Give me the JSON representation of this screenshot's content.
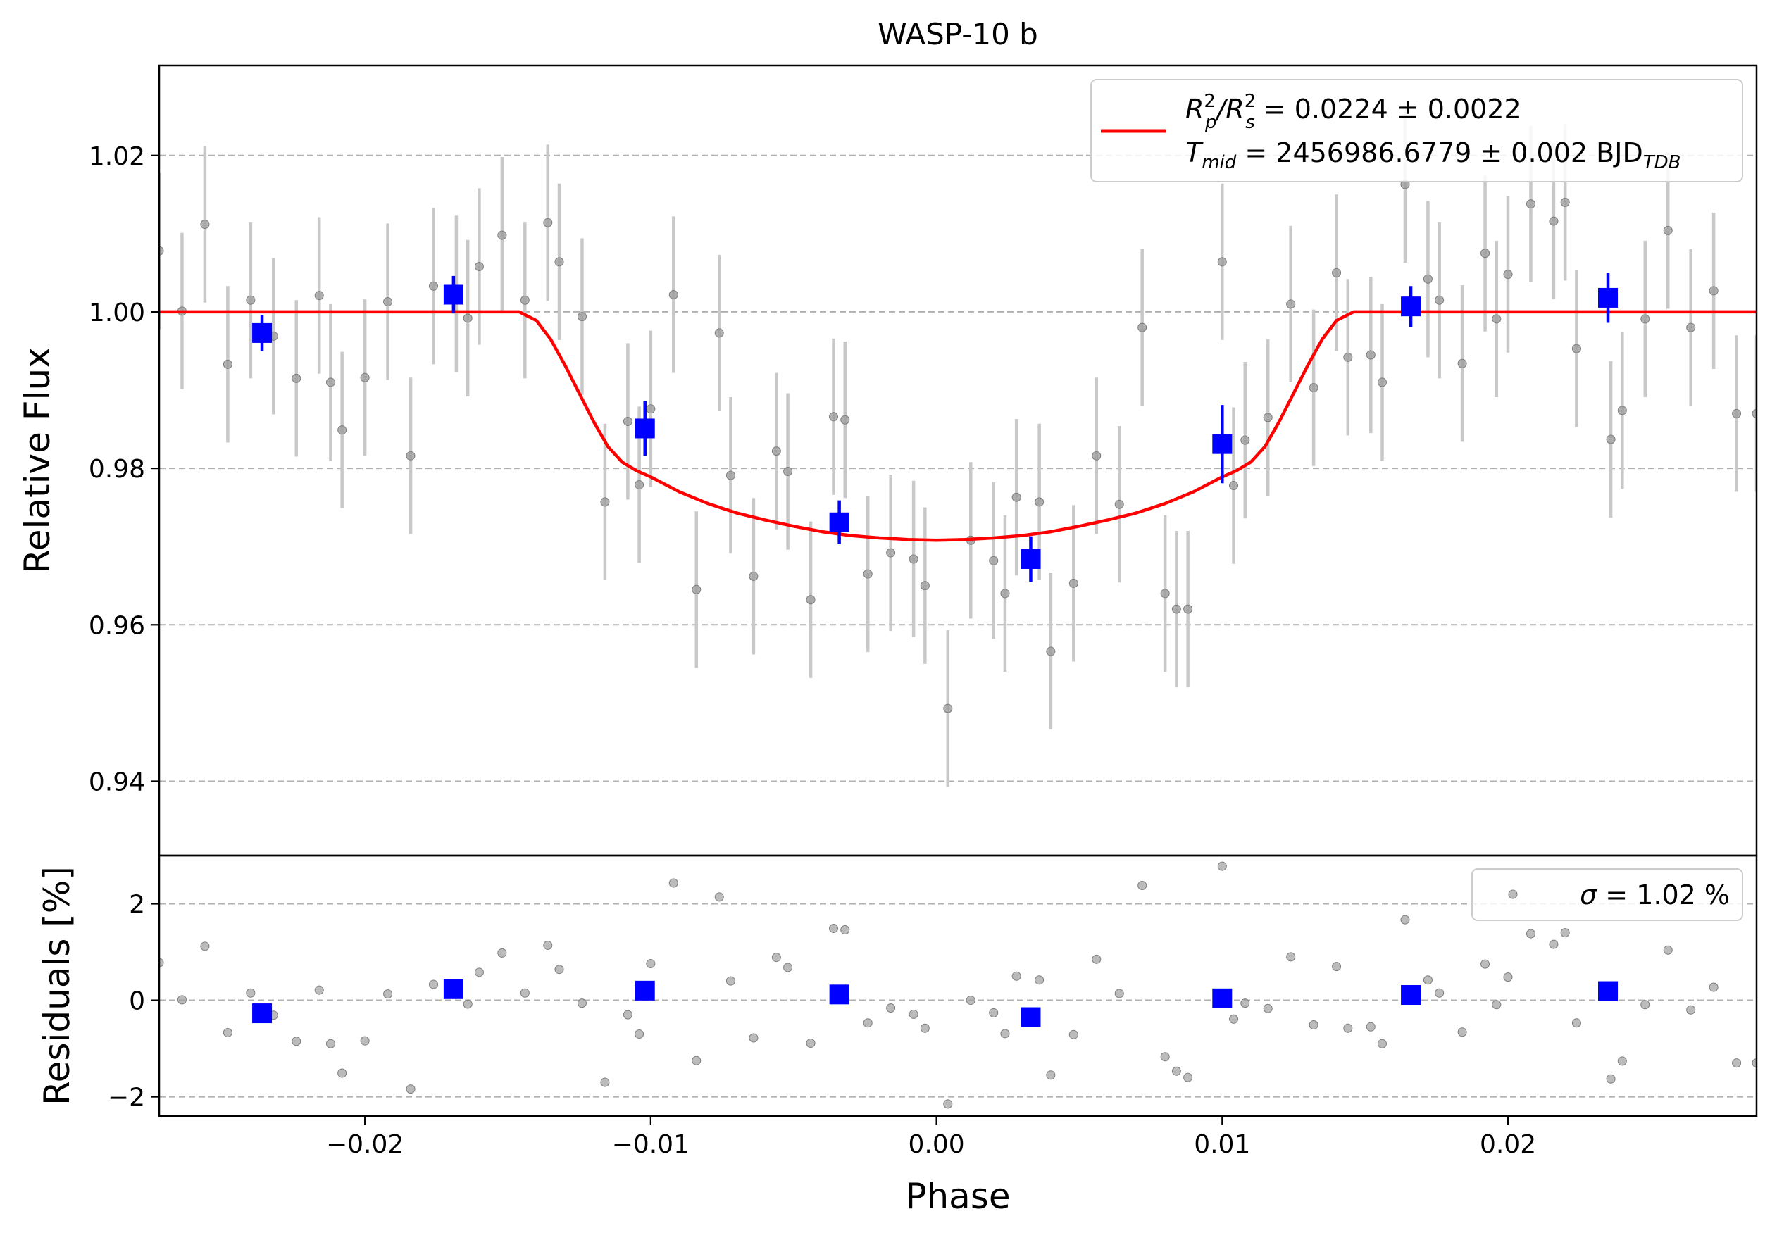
{
  "chart_data": [
    {
      "type": "scatter",
      "panel": "main",
      "title": "WASP-10 b",
      "xlabel": "",
      "ylabel": "Relative Flux",
      "xlim": [
        -0.0272,
        0.0287
      ],
      "ylim": [
        0.9305,
        1.0315
      ],
      "grid": "horizontal-dashed",
      "legend_position": "top-right",
      "y_ticks": [
        0.94,
        0.96,
        0.98,
        1.0,
        1.02
      ],
      "y_tick_labels": [
        "0.94",
        "0.96",
        "0.98",
        "1.00",
        "1.02"
      ],
      "legend": {
        "line1": "Rₚ²/Rₛ² = 0.0224 ± 0.0022",
        "line2": "T_mid = 2456986.6779 ± 0.002 BJD_TDB",
        "line1_parts": {
          "lhs_a": "R",
          "lhs_a_sup": "2",
          "lhs_a_sub": "p",
          "slash": "/",
          "lhs_b": "R",
          "lhs_b_sup": "2",
          "lhs_b_sub": "s",
          "rhs": " = 0.0224 ± 0.0022"
        },
        "line2_parts": {
          "lhs": "T",
          "lhs_sub": "mid",
          "rhs": " = 2456986.6779 ± 0.002 BJD",
          "rhs_sub": "TDB"
        }
      },
      "series": [
        {
          "name": "data",
          "color": "#9e9e9e",
          "x": [
            -0.0272,
            -0.0264,
            -0.0256,
            -0.0248,
            -0.024,
            -0.0232,
            -0.0224,
            -0.0216,
            -0.0212,
            -0.0208,
            -0.02,
            -0.0192,
            -0.0184,
            -0.0176,
            -0.0168,
            -0.0164,
            -0.016,
            -0.0152,
            -0.0144,
            -0.0136,
            -0.0132,
            -0.0124,
            -0.0116,
            -0.0108,
            -0.0104,
            -0.01,
            -0.0092,
            -0.0084,
            -0.0076,
            -0.0072,
            -0.0064,
            -0.0056,
            -0.0052,
            -0.0044,
            -0.0036,
            -0.0032,
            -0.0024,
            -0.0016,
            -0.0008,
            -0.0004,
            0.0004,
            0.0012,
            0.002,
            0.0024,
            0.0028,
            0.0036,
            0.004,
            0.0048,
            0.0056,
            0.0064,
            0.0072,
            0.008,
            0.0084,
            0.0088,
            0.01,
            0.0104,
            0.0108,
            0.0116,
            0.0124,
            0.0132,
            0.014,
            0.0144,
            0.0152,
            0.0156,
            0.0164,
            0.0172,
            0.0176,
            0.0184,
            0.0192,
            0.0196,
            0.02,
            0.0208,
            0.0216,
            0.022,
            0.0224,
            0.0236,
            0.024,
            0.0248,
            0.0256,
            0.0264,
            0.0272,
            0.028,
            0.0287
          ],
          "y": [
            1.0078,
            1.0001,
            1.0112,
            0.9933,
            1.0015,
            0.9969,
            0.9915,
            1.0021,
            0.991,
            0.9849,
            0.9916,
            1.0013,
            0.9816,
            1.0033,
            1.0023,
            0.9992,
            1.0058,
            1.0098,
            1.0015,
            1.0114,
            1.0064,
            0.9994,
            0.9757,
            0.986,
            0.9779,
            0.9876,
            1.0022,
            0.9645,
            0.9973,
            0.9791,
            0.9662,
            0.9822,
            0.9796,
            0.9632,
            0.9866,
            0.9862,
            0.9665,
            0.9692,
            0.9684,
            0.965,
            0.9493,
            0.9708,
            0.9682,
            0.964,
            0.9763,
            0.9757,
            0.9566,
            0.9653,
            0.9816,
            0.9754,
            0.998,
            0.964,
            0.962,
            0.962,
            1.0064,
            0.9778,
            0.9836,
            0.9865,
            1.001,
            0.9903,
            1.005,
            0.9942,
            0.9945,
            0.991,
            1.0163,
            1.0042,
            1.0015,
            0.9934,
            1.0075,
            0.9991,
            1.0048,
            1.0138,
            1.0116,
            1.014,
            0.9953,
            0.9837,
            0.9874,
            0.9991,
            1.0104,
            0.998,
            1.0027,
            0.987,
            0.987
          ],
          "residuals": [
            0.78,
            0.01,
            1.12,
            -0.67,
            0.15,
            -0.31,
            -0.85,
            0.21,
            -0.9,
            -1.51,
            -0.84,
            0.13,
            -1.84,
            0.33,
            0.23,
            -0.08,
            0.58,
            0.98,
            0.15,
            1.14,
            0.64,
            -0.06,
            -1.7,
            -0.3,
            -0.7,
            0.76,
            2.43,
            -1.25,
            2.14,
            0.4,
            -0.78,
            0.89,
            0.68,
            -0.89,
            1.49,
            1.46,
            -0.47,
            -0.16,
            -0.29,
            -0.58,
            -2.15,
            0.0,
            -0.26,
            -0.69,
            0.5,
            0.42,
            -1.55,
            -0.71,
            0.85,
            0.14,
            2.38,
            -1.17,
            -1.47,
            -1.6,
            2.78,
            -0.39,
            -0.06,
            -0.17,
            0.9,
            -0.51,
            0.7,
            -0.58,
            -0.55,
            -0.9,
            1.67,
            0.42,
            0.15,
            -0.66,
            0.75,
            -0.09,
            0.48,
            1.38,
            1.16,
            1.4,
            -0.47,
            -1.63,
            -1.26,
            -0.09,
            1.04,
            -0.2,
            0.27,
            -1.3,
            -1.3
          ],
          "err": 0.01
        },
        {
          "name": "binned",
          "color": "#0000ff",
          "x": [
            -0.0236,
            -0.0169,
            -0.0102,
            -0.0034,
            0.0033,
            0.01,
            0.0166,
            0.0235
          ],
          "y": [
            0.9973,
            1.0022,
            0.9851,
            0.9731,
            0.9684,
            0.9831,
            1.0007,
            1.0018
          ],
          "err": [
            0.0023,
            0.0024,
            0.0035,
            0.0028,
            0.0029,
            0.005,
            0.0026,
            0.0032
          ],
          "residuals": [
            -0.27,
            0.23,
            0.2,
            0.12,
            -0.35,
            0.04,
            0.11,
            0.19
          ]
        },
        {
          "name": "model",
          "color": "#ff0000",
          "x": [
            -0.0272,
            -0.0146,
            -0.014,
            -0.0135,
            -0.013,
            -0.0125,
            -0.012,
            -0.0115,
            -0.011,
            -0.0105,
            -0.01,
            -0.009,
            -0.008,
            -0.007,
            -0.006,
            -0.005,
            -0.004,
            -0.003,
            -0.002,
            -0.001,
            0.0,
            0.001,
            0.002,
            0.003,
            0.004,
            0.005,
            0.006,
            0.007,
            0.008,
            0.009,
            0.01,
            0.0105,
            0.011,
            0.0115,
            0.012,
            0.0125,
            0.013,
            0.0135,
            0.014,
            0.0146,
            0.0287
          ],
          "y": [
            1.0,
            1.0,
            0.9989,
            0.9965,
            0.9932,
            0.9896,
            0.986,
            0.9828,
            0.9808,
            0.9797,
            0.9789,
            0.977,
            0.9755,
            0.9743,
            0.9734,
            0.9726,
            0.9719,
            0.9714,
            0.9711,
            0.9709,
            0.9708,
            0.9709,
            0.9711,
            0.9714,
            0.9719,
            0.9726,
            0.9734,
            0.9743,
            0.9755,
            0.977,
            0.9789,
            0.9797,
            0.9808,
            0.9828,
            0.986,
            0.9896,
            0.9932,
            0.9965,
            0.9989,
            1.0,
            1.0
          ]
        }
      ]
    },
    {
      "type": "scatter",
      "panel": "residuals",
      "xlabel": "Phase",
      "ylabel": "Residuals [%]",
      "xlim": [
        -0.0272,
        0.0287
      ],
      "ylim": [
        -2.4,
        3.0
      ],
      "grid": "horizontal-dashed",
      "legend_position": "top-right",
      "x_ticks": [
        -0.02,
        -0.01,
        0.0,
        0.01,
        0.02
      ],
      "x_tick_labels": [
        "−0.02",
        "−0.01",
        "0.00",
        "0.01",
        "0.02"
      ],
      "y_ticks": [
        -2,
        0,
        2
      ],
      "y_tick_labels": [
        "−2",
        "0",
        "2"
      ],
      "legend": {
        "text": "σ = 1.02 %",
        "sigma": "σ",
        "rest": " = 1.02 %"
      }
    }
  ]
}
